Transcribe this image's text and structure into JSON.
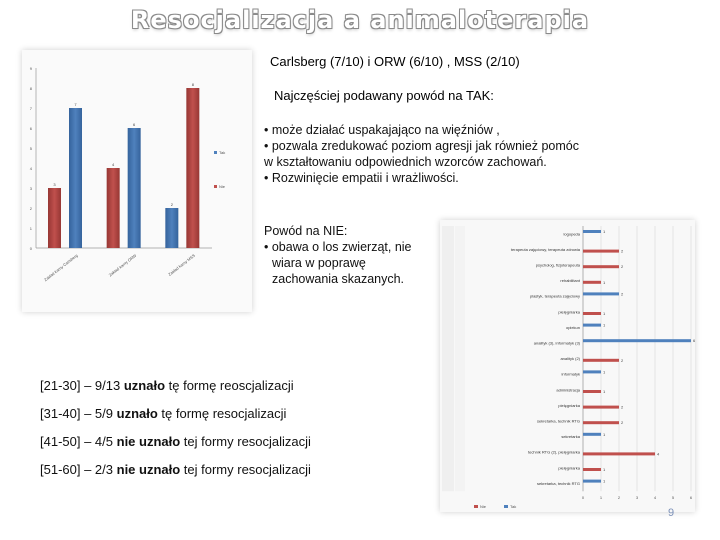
{
  "slide": {
    "title": "Resocjalizacja a animaloterapia",
    "subtitle": "Carlsberg (7/10) i ORW (6/10) , MSS (2/10)",
    "yes_heading": "Najczęściej podawany powód na TAK:",
    "yes_lines": [
      "• może działać uspakajająco na więźniów ,",
      "• pozwala zredukować poziom agresji jak również pomóc w kształtowaniu odpowiednich wzorców zachowań.",
      "• Rozwinięcie empatii i wrażliwości."
    ],
    "no_heading": "Powód na NIE:",
    "no_lines": [
      "• obawa o los zwierząt, nie wiara w poprawę zachowania skazanych."
    ],
    "age_groups": [
      {
        "range": "[21-30] – 9/13 ",
        "bold": "uznało",
        "rest": " tę formę reoscjalizacji"
      },
      {
        "range": "[31-40] – 5/9 ",
        "bold": "uznało",
        "rest": " tę formę resocjalizacji"
      },
      {
        "range": "[41-50] – 4/5 ",
        "bold": "nie uznało",
        "rest": " tej formy resocjalizacji"
      },
      {
        "range": "[51-60] – 2/3 ",
        "bold": "nie uznało",
        "rest": " tej formy resocjalizacji"
      }
    ],
    "page_number": "9"
  },
  "colors": {
    "yes": "#4f81bd",
    "no": "#c0504d"
  },
  "chart_data": [
    {
      "type": "bar",
      "categories": [
        "Zakład karny Carlsberg",
        "Zakład karny ORW",
        "Zakład karny MSS"
      ],
      "series": [
        {
          "name": "Tak",
          "values": [
            7,
            6,
            2
          ]
        },
        {
          "name": "Nie",
          "values": [
            3,
            4,
            8
          ]
        }
      ],
      "ylim": [
        0,
        9
      ],
      "legend": "right",
      "grid": false
    },
    {
      "type": "bar",
      "orientation": "horizontal",
      "categories": [
        "logopeda",
        "terapeuta zajęciowy, terapeuta zdrowia",
        "psycholog, fizjoterapeuta",
        "rehabilitant",
        "plastyk, terapeuta zajęciowy",
        "pielęgniarka",
        "opiekun",
        "analityk (3), informatyk (3)",
        "analityk (2)",
        "informatyk",
        "administracja",
        "pielęgniarka",
        "sekretarka, technik RTG",
        "sekretarka",
        "technik RTG (2), pielęgniarka",
        "pielęgniarka",
        "sekretarka, technik RTG"
      ],
      "series": [
        {
          "name": "Tak",
          "values": [
            1,
            0,
            0,
            0,
            2,
            0,
            1,
            6,
            0,
            1,
            0,
            0,
            0,
            1,
            0,
            0,
            1
          ]
        },
        {
          "name": "Nie",
          "values": [
            0,
            2,
            2,
            1,
            0,
            1,
            0,
            0,
            2,
            0,
            1,
            2,
            2,
            0,
            4,
            1,
            0
          ]
        }
      ],
      "xlim": [
        0,
        6
      ],
      "legend": "bottom",
      "grid": true
    }
  ]
}
